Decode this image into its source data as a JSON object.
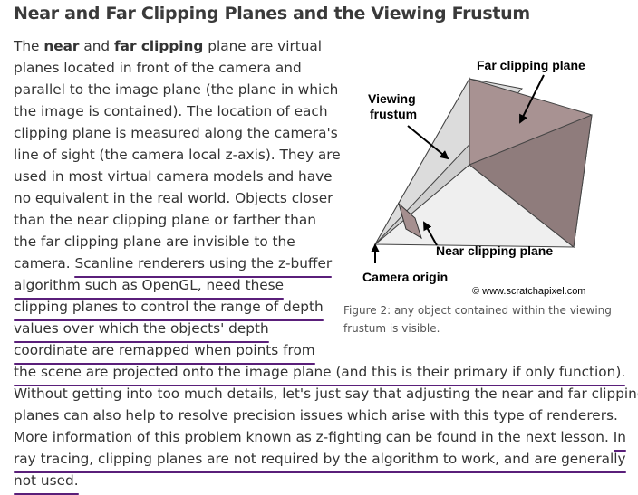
{
  "title": "Near and Far Clipping Planes and the Viewing Frustum",
  "paragraph": {
    "l1_a": "The ",
    "l1_b": "near",
    "l1_c": " and ",
    "l1_d": "far clipping",
    "l1_e": " plane are virtual",
    "l2": "planes located in front of the camera and",
    "l3": "parallel to the image plane (the plane in which",
    "l4": "the image is contained). The location of each",
    "l5": "clipping plane is measured along the camera's",
    "l6": "line of sight (the camera local z-axis). They are",
    "l7": "used in most virtual camera models and have",
    "l8": "no equivalent in the real world. Objects closer",
    "l9": "than the near clipping plane or farther than",
    "l10": "the far clipping plane are invisible to the",
    "l11_a": "camera. ",
    "l11_b": "Scanline renderers using the z-buffer",
    "l12": "algorithm such as OpenGL, need these",
    "l13": "clipping planes to control the range of depth",
    "l14": "values over which the objects' depth",
    "l15": "coordinate are remapped when points from",
    "l16": "the scene are projected onto the image plane (and this is their primary if only function).",
    "l17": "Without getting into too much details, let's just say that adjusting the near and far clipping",
    "l18": "planes can also help to resolve precision issues which arise with this type of renderers.",
    "l19_a": "More information of this problem known as z-fighting can be found in the next lesson. ",
    "l19_b": "In",
    "l20": "ray tracing, clipping planes are not required by the algorithm to work, and are generally",
    "l21": "not used."
  },
  "figure": {
    "label_far": "Far clipping plane",
    "label_frustum_1": "Viewing",
    "label_frustum_2": "frustum",
    "label_near": "Near clipping plane",
    "label_camera": "Camera origin",
    "copyright": "© www.scratchapixel.com",
    "caption": "Figure 2: any object contained within the viewing frustum is visible."
  },
  "colors": {
    "underline": "#5a1f7a",
    "far_plane": "#a89292",
    "frustum": "#cfcfcf"
  }
}
